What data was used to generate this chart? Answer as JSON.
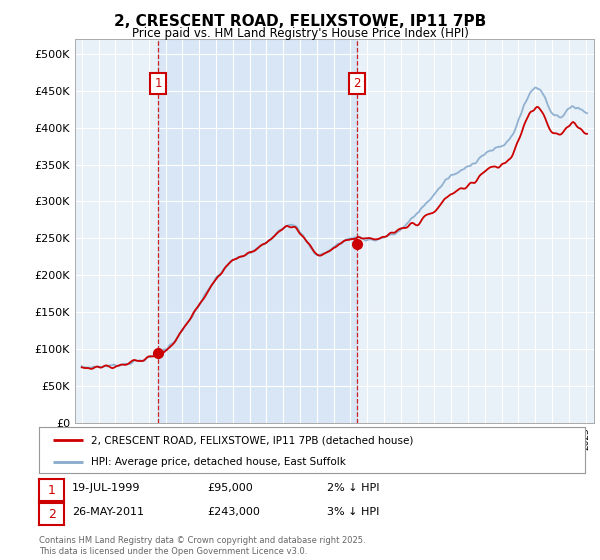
{
  "title1": "2, CRESCENT ROAD, FELIXSTOWE, IP11 7PB",
  "title2": "Price paid vs. HM Land Registry's House Price Index (HPI)",
  "legend_line1": "2, CRESCENT ROAD, FELIXSTOWE, IP11 7PB (detached house)",
  "legend_line2": "HPI: Average price, detached house, East Suffolk",
  "annotation1_label": "1",
  "annotation1_date": "19-JUL-1999",
  "annotation1_price": "£95,000",
  "annotation1_hpi": "2% ↓ HPI",
  "annotation2_label": "2",
  "annotation2_date": "26-MAY-2011",
  "annotation2_price": "£243,000",
  "annotation2_hpi": "3% ↓ HPI",
  "footnote": "Contains HM Land Registry data © Crown copyright and database right 2025.\nThis data is licensed under the Open Government Licence v3.0.",
  "line_color_red": "#cc0000",
  "line_color_blue": "#88aacc",
  "annotation_color": "#cc0000",
  "grid_color": "#cccccc",
  "background_color": "#ffffff",
  "chart_bg_color": "#e8f0f8",
  "ylim_min": 0,
  "ylim_max": 520000,
  "yticks": [
    0,
    50000,
    100000,
    150000,
    200000,
    250000,
    300000,
    350000,
    400000,
    450000,
    500000
  ],
  "sale1_year": 1999.54,
  "sale1_price": 95000,
  "sale2_year": 2011.38,
  "sale2_price": 243000
}
